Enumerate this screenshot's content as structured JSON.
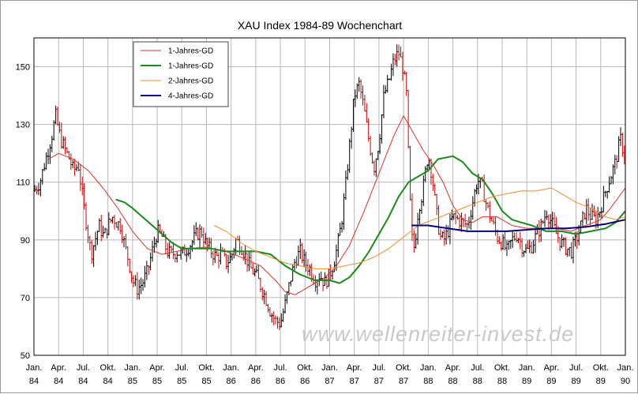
{
  "chart_data": {
    "type": "line",
    "subtype": "weekly-ohlc-with-moving-averages",
    "title": "XAU Index 1984-89 Wochenchart",
    "watermark": "www.wellenreiter-invest.de",
    "xlabel": "",
    "ylabel": "",
    "ylim": [
      50,
      160
    ],
    "y_ticks": [
      50,
      70,
      90,
      110,
      130,
      150
    ],
    "x_range": [
      1984.0,
      1990.0
    ],
    "x_ticks": [
      {
        "month": "Jan.",
        "year": "84",
        "t": 1984.0
      },
      {
        "month": "Apr.",
        "year": "84",
        "t": 1984.25
      },
      {
        "month": "Jul.",
        "year": "84",
        "t": 1984.5
      },
      {
        "month": "Okt.",
        "year": "84",
        "t": 1984.75
      },
      {
        "month": "Jan.",
        "year": "85",
        "t": 1985.0
      },
      {
        "month": "Apr.",
        "year": "85",
        "t": 1985.25
      },
      {
        "month": "Jul.",
        "year": "85",
        "t": 1985.5
      },
      {
        "month": "Okt.",
        "year": "85",
        "t": 1985.75
      },
      {
        "month": "Jan.",
        "year": "86",
        "t": 1986.0
      },
      {
        "month": "Apr.",
        "year": "86",
        "t": 1986.25
      },
      {
        "month": "Jul.",
        "year": "86",
        "t": 1986.5
      },
      {
        "month": "Okt.",
        "year": "86",
        "t": 1986.75
      },
      {
        "month": "Jan.",
        "year": "87",
        "t": 1987.0
      },
      {
        "month": "Apr.",
        "year": "87",
        "t": 1987.25
      },
      {
        "month": "Jul.",
        "year": "87",
        "t": 1987.5
      },
      {
        "month": "Okt.",
        "year": "87",
        "t": 1987.75
      },
      {
        "month": "Jan.",
        "year": "88",
        "t": 1988.0
      },
      {
        "month": "Apr.",
        "year": "88",
        "t": 1988.25
      },
      {
        "month": "Jul.",
        "year": "88",
        "t": 1988.5
      },
      {
        "month": "Okt.",
        "year": "88",
        "t": 1988.75
      },
      {
        "month": "Jan.",
        "year": "89",
        "t": 1989.0
      },
      {
        "month": "Apr.",
        "year": "89",
        "t": 1989.25
      },
      {
        "month": "Jul.",
        "year": "89",
        "t": 1989.5
      },
      {
        "month": "Okt.",
        "year": "89",
        "t": 1989.75
      },
      {
        "month": "Jan.",
        "year": "90",
        "t": 1990.0
      }
    ],
    "grid": {
      "vertical": true,
      "horizontal": true
    },
    "legend": {
      "position": "top-left",
      "boxed": true
    },
    "price_series": {
      "name": "XAU Index",
      "color_up": "#000000",
      "color_down": "#d40000",
      "close_keypoints": [
        [
          1984.0,
          107
        ],
        [
          1984.06,
          110
        ],
        [
          1984.12,
          118
        ],
        [
          1984.18,
          126
        ],
        [
          1984.22,
          133
        ],
        [
          1984.27,
          125
        ],
        [
          1984.32,
          121
        ],
        [
          1984.36,
          118
        ],
        [
          1984.4,
          114
        ],
        [
          1984.45,
          116
        ],
        [
          1984.5,
          103
        ],
        [
          1984.54,
          94
        ],
        [
          1984.58,
          85
        ],
        [
          1984.62,
          90
        ],
        [
          1984.66,
          95
        ],
        [
          1984.71,
          91
        ],
        [
          1984.75,
          95
        ],
        [
          1984.8,
          98
        ],
        [
          1984.84,
          96
        ],
        [
          1984.88,
          95
        ],
        [
          1984.92,
          88
        ],
        [
          1984.96,
          83
        ],
        [
          1985.0,
          76
        ],
        [
          1985.05,
          73
        ],
        [
          1985.1,
          75
        ],
        [
          1985.15,
          79
        ],
        [
          1985.2,
          86
        ],
        [
          1985.25,
          93
        ],
        [
          1985.3,
          91
        ],
        [
          1985.35,
          86
        ],
        [
          1985.4,
          85
        ],
        [
          1985.45,
          86
        ],
        [
          1985.5,
          85
        ],
        [
          1985.55,
          87
        ],
        [
          1985.6,
          89
        ],
        [
          1985.65,
          92
        ],
        [
          1985.7,
          93
        ],
        [
          1985.75,
          88
        ],
        [
          1985.8,
          86
        ],
        [
          1985.85,
          84
        ],
        [
          1985.9,
          85
        ],
        [
          1985.95,
          82
        ],
        [
          1986.0,
          84
        ],
        [
          1986.05,
          90
        ],
        [
          1986.1,
          88
        ],
        [
          1986.15,
          84
        ],
        [
          1986.2,
          80
        ],
        [
          1986.25,
          78
        ],
        [
          1986.3,
          74
        ],
        [
          1986.35,
          70
        ],
        [
          1986.4,
          65
        ],
        [
          1986.45,
          62
        ],
        [
          1986.5,
          61
        ],
        [
          1986.55,
          68
        ],
        [
          1986.6,
          76
        ],
        [
          1986.65,
          83
        ],
        [
          1986.7,
          86
        ],
        [
          1986.75,
          82
        ],
        [
          1986.8,
          80
        ],
        [
          1986.85,
          76
        ],
        [
          1986.9,
          78
        ],
        [
          1986.95,
          75
        ],
        [
          1987.0,
          78
        ],
        [
          1987.04,
          82
        ],
        [
          1987.08,
          88
        ],
        [
          1987.12,
          96
        ],
        [
          1987.16,
          108
        ],
        [
          1987.2,
          122
        ],
        [
          1987.25,
          140
        ],
        [
          1987.3,
          144
        ],
        [
          1987.35,
          135
        ],
        [
          1987.4,
          124
        ],
        [
          1987.45,
          115
        ],
        [
          1987.5,
          124
        ],
        [
          1987.55,
          140
        ],
        [
          1987.6,
          145
        ],
        [
          1987.65,
          152
        ],
        [
          1987.7,
          155
        ],
        [
          1987.74,
          150
        ],
        [
          1987.78,
          140
        ],
        [
          1987.8,
          118
        ],
        [
          1987.83,
          91
        ],
        [
          1987.86,
          87
        ],
        [
          1987.9,
          101
        ],
        [
          1987.94,
          106
        ],
        [
          1988.0,
          120
        ],
        [
          1988.04,
          112
        ],
        [
          1988.08,
          100
        ],
        [
          1988.12,
          91
        ],
        [
          1988.16,
          90
        ],
        [
          1988.2,
          93
        ],
        [
          1988.25,
          98
        ],
        [
          1988.3,
          97
        ],
        [
          1988.35,
          96
        ],
        [
          1988.4,
          95
        ],
        [
          1988.45,
          103
        ],
        [
          1988.5,
          111
        ],
        [
          1988.55,
          108
        ],
        [
          1988.6,
          101
        ],
        [
          1988.65,
          96
        ],
        [
          1988.7,
          91
        ],
        [
          1988.75,
          89
        ],
        [
          1988.8,
          86
        ],
        [
          1988.85,
          90
        ],
        [
          1988.9,
          92
        ],
        [
          1988.95,
          88
        ],
        [
          1989.0,
          86
        ],
        [
          1989.05,
          88
        ],
        [
          1989.1,
          92
        ],
        [
          1989.15,
          95
        ],
        [
          1989.2,
          100
        ],
        [
          1989.25,
          96
        ],
        [
          1989.3,
          92
        ],
        [
          1989.35,
          89
        ],
        [
          1989.4,
          87
        ],
        [
          1989.45,
          86
        ],
        [
          1989.5,
          90
        ],
        [
          1989.55,
          95
        ],
        [
          1989.6,
          101
        ],
        [
          1989.65,
          98
        ],
        [
          1989.7,
          97
        ],
        [
          1989.75,
          101
        ],
        [
          1989.8,
          107
        ],
        [
          1989.85,
          112
        ],
        [
          1989.9,
          117
        ],
        [
          1989.95,
          125
        ],
        [
          1990.0,
          118
        ]
      ]
    },
    "series": [
      {
        "name": "1-Jahres-GD",
        "color": "#e03020",
        "width": 1,
        "points": [
          [
            1984.15,
            118
          ],
          [
            1984.25,
            120
          ],
          [
            1984.4,
            118
          ],
          [
            1984.55,
            114
          ],
          [
            1984.7,
            108
          ],
          [
            1984.85,
            101
          ],
          [
            1985.0,
            93
          ],
          [
            1985.15,
            87
          ],
          [
            1985.3,
            85
          ],
          [
            1985.45,
            86
          ],
          [
            1985.55,
            87
          ],
          [
            1985.75,
            87.5
          ],
          [
            1985.95,
            86
          ],
          [
            1986.1,
            84
          ],
          [
            1986.3,
            81
          ],
          [
            1986.45,
            76
          ],
          [
            1986.55,
            72
          ],
          [
            1986.65,
            71
          ],
          [
            1986.8,
            74
          ],
          [
            1986.95,
            77
          ],
          [
            1987.05,
            80
          ],
          [
            1987.2,
            88
          ],
          [
            1987.35,
            100
          ],
          [
            1987.5,
            113
          ],
          [
            1987.65,
            126
          ],
          [
            1987.75,
            133
          ],
          [
            1987.85,
            127
          ],
          [
            1987.95,
            121
          ],
          [
            1988.05,
            116
          ],
          [
            1988.15,
            110
          ],
          [
            1988.25,
            102
          ],
          [
            1988.35,
            97
          ],
          [
            1988.45,
            96
          ],
          [
            1988.55,
            98
          ],
          [
            1988.7,
            98
          ],
          [
            1988.85,
            95
          ],
          [
            1989.0,
            94
          ],
          [
            1989.15,
            94
          ],
          [
            1989.3,
            94
          ],
          [
            1989.45,
            93
          ],
          [
            1989.6,
            95
          ],
          [
            1989.75,
            97
          ],
          [
            1989.85,
            101
          ],
          [
            1990.0,
            108
          ]
        ]
      },
      {
        "name": "1-Jahres-GD",
        "color": "#1a8a1a",
        "width": 2,
        "points": [
          [
            1984.83,
            104
          ],
          [
            1984.92,
            103
          ],
          [
            1985.0,
            101
          ],
          [
            1985.1,
            98
          ],
          [
            1985.2,
            95
          ],
          [
            1985.3,
            92
          ],
          [
            1985.4,
            89
          ],
          [
            1985.5,
            87
          ],
          [
            1985.65,
            87
          ],
          [
            1985.8,
            87
          ],
          [
            1985.95,
            86
          ],
          [
            1986.1,
            86
          ],
          [
            1986.25,
            86
          ],
          [
            1986.4,
            85
          ],
          [
            1986.55,
            81
          ],
          [
            1986.7,
            78
          ],
          [
            1986.85,
            76
          ],
          [
            1987.0,
            76
          ],
          [
            1987.1,
            75
          ],
          [
            1987.2,
            77
          ],
          [
            1987.3,
            81
          ],
          [
            1987.4,
            86
          ],
          [
            1987.5,
            92
          ],
          [
            1987.6,
            98
          ],
          [
            1987.7,
            105
          ],
          [
            1987.8,
            110
          ],
          [
            1987.9,
            112
          ],
          [
            1988.0,
            114
          ],
          [
            1988.1,
            118
          ],
          [
            1988.25,
            119
          ],
          [
            1988.35,
            117
          ],
          [
            1988.45,
            113
          ],
          [
            1988.55,
            111
          ],
          [
            1988.65,
            106
          ],
          [
            1988.75,
            100
          ],
          [
            1988.85,
            97
          ],
          [
            1988.95,
            96
          ],
          [
            1989.05,
            95
          ],
          [
            1989.2,
            93
          ],
          [
            1989.35,
            93
          ],
          [
            1989.5,
            92
          ],
          [
            1989.65,
            93
          ],
          [
            1989.8,
            94
          ],
          [
            1989.9,
            96
          ],
          [
            1990.0,
            100
          ]
        ]
      },
      {
        "name": "2-Jahres-GD",
        "color": "#f08c30",
        "width": 1,
        "points": [
          [
            1985.83,
            95
          ],
          [
            1985.95,
            93
          ],
          [
            1986.1,
            89
          ],
          [
            1986.25,
            86
          ],
          [
            1986.4,
            84
          ],
          [
            1986.55,
            82
          ],
          [
            1986.7,
            81
          ],
          [
            1986.85,
            80
          ],
          [
            1987.0,
            80
          ],
          [
            1987.15,
            81
          ],
          [
            1987.3,
            82
          ],
          [
            1987.45,
            84
          ],
          [
            1987.6,
            87
          ],
          [
            1987.75,
            91
          ],
          [
            1987.9,
            95
          ],
          [
            1988.05,
            97
          ],
          [
            1988.2,
            99
          ],
          [
            1988.35,
            101
          ],
          [
            1988.5,
            103
          ],
          [
            1988.65,
            105
          ],
          [
            1988.8,
            106
          ],
          [
            1988.95,
            107
          ],
          [
            1989.1,
            107
          ],
          [
            1989.25,
            108
          ],
          [
            1989.35,
            106
          ],
          [
            1989.5,
            103
          ],
          [
            1989.65,
            101
          ],
          [
            1989.8,
            98
          ],
          [
            1989.9,
            97
          ],
          [
            1990.0,
            98
          ]
        ]
      },
      {
        "name": "4-Jahres-GD",
        "color": "#000080",
        "width": 2,
        "points": [
          [
            1987.83,
            95
          ],
          [
            1988.0,
            95
          ],
          [
            1988.2,
            94
          ],
          [
            1988.4,
            93
          ],
          [
            1988.6,
            93
          ],
          [
            1988.8,
            93
          ],
          [
            1989.0,
            93.5
          ],
          [
            1989.2,
            94
          ],
          [
            1989.4,
            94
          ],
          [
            1989.6,
            94.5
          ],
          [
            1989.8,
            95.5
          ],
          [
            1990.0,
            97
          ]
        ]
      }
    ]
  }
}
